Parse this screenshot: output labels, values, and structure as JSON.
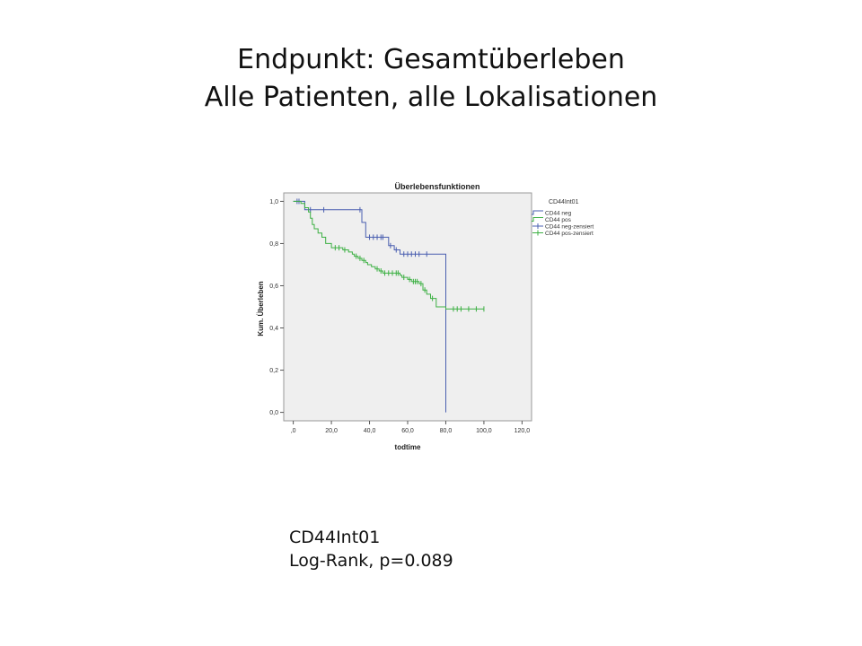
{
  "slide": {
    "title_line1": "Endpunkt: Gesamtüberleben",
    "title_line2": "Alle Patienten, alle Lokalisationen"
  },
  "notes": {
    "line1": "CD44Int01",
    "line2": "Log-Rank, p=0.089"
  },
  "colors": {
    "neg": "#4a5fb0",
    "pos": "#3cb043",
    "plot_bg": "#efefef"
  },
  "chart_data": {
    "type": "line",
    "subtype": "kaplan-meier",
    "title": "Überlebensfunktionen",
    "xlabel": "todtime",
    "ylabel": "Kum. Überleben",
    "xlim": [
      -5,
      125
    ],
    "ylim": [
      -0.04,
      1.04
    ],
    "x_ticks": [
      0,
      20,
      40,
      60,
      80,
      100,
      120
    ],
    "x_tick_labels": [
      ",0",
      "20,0",
      "40,0",
      "60,0",
      "80,0",
      "100,0",
      "120,0"
    ],
    "y_ticks": [
      0,
      0.2,
      0.4,
      0.6,
      0.8,
      1.0
    ],
    "y_tick_labels": [
      "0,0",
      "0,2",
      "0,4",
      "0,6",
      "0,8",
      "1,0"
    ],
    "grid": false,
    "legend_title": "CD44Int01",
    "legend_position": "right",
    "legend": [
      "CD44 neg",
      "CD44 pos",
      "CD44 neg-zensiert",
      "CD44 pos-zensiert"
    ],
    "series": [
      {
        "name": "CD44 neg",
        "color": "#4a5fb0",
        "steps": [
          [
            0,
            1.0
          ],
          [
            6,
            0.96
          ],
          [
            34,
            0.96
          ],
          [
            36,
            0.9
          ],
          [
            38,
            0.83
          ],
          [
            48,
            0.83
          ],
          [
            50,
            0.79
          ],
          [
            53,
            0.77
          ],
          [
            56,
            0.75
          ],
          [
            80,
            0.75
          ],
          [
            80,
            0.0
          ]
        ],
        "censored": [
          2,
          3,
          9,
          16,
          35,
          40,
          42,
          44,
          46,
          47,
          51,
          54,
          58,
          60,
          62,
          64,
          66,
          70
        ]
      },
      {
        "name": "CD44 pos",
        "color": "#3cb043",
        "steps": [
          [
            0,
            1.0
          ],
          [
            4,
            0.99
          ],
          [
            6,
            0.97
          ],
          [
            8,
            0.95
          ],
          [
            9,
            0.92
          ],
          [
            10,
            0.89
          ],
          [
            11,
            0.87
          ],
          [
            13,
            0.85
          ],
          [
            15,
            0.83
          ],
          [
            17,
            0.8
          ],
          [
            20,
            0.78
          ],
          [
            26,
            0.77
          ],
          [
            29,
            0.76
          ],
          [
            31,
            0.75
          ],
          [
            32,
            0.74
          ],
          [
            34,
            0.73
          ],
          [
            36,
            0.72
          ],
          [
            38,
            0.71
          ],
          [
            39,
            0.7
          ],
          [
            41,
            0.69
          ],
          [
            43,
            0.68
          ],
          [
            45,
            0.67
          ],
          [
            47,
            0.66
          ],
          [
            56,
            0.65
          ],
          [
            57,
            0.64
          ],
          [
            60,
            0.63
          ],
          [
            62,
            0.62
          ],
          [
            66,
            0.61
          ],
          [
            68,
            0.58
          ],
          [
            70,
            0.56
          ],
          [
            72,
            0.54
          ],
          [
            75,
            0.5
          ],
          [
            80,
            0.49
          ],
          [
            100,
            0.49
          ]
        ],
        "censored": [
          22,
          24,
          27,
          33,
          35,
          37,
          44,
          46,
          48,
          50,
          52,
          54,
          55,
          58,
          61,
          63,
          64,
          65,
          67,
          69,
          73,
          84,
          86,
          88,
          92,
          96,
          100
        ]
      }
    ]
  }
}
